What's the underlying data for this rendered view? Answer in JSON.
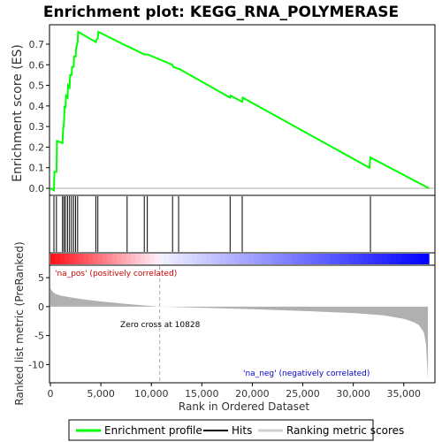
{
  "chart_data": [
    {
      "type": "line",
      "title": "Enrichment plot: KEGG_RNA_POLYMERASE",
      "ylabel": "Enrichment score (ES)",
      "xlim": [
        0,
        38000
      ],
      "ylim": [
        -0.03,
        0.79
      ],
      "yticks": [
        "0.0",
        "0.1",
        "0.2",
        "0.3",
        "0.4",
        "0.5",
        "0.6",
        "0.7"
      ],
      "line_color": "#00ff00",
      "series": [
        {
          "x": [
            0,
            350,
            400,
            600,
            650,
            1200,
            1250,
            1350,
            1400,
            1500,
            1550,
            1700,
            1750,
            1900,
            1950,
            2100,
            2150,
            2300,
            2350,
            2500,
            2550,
            2700,
            2750,
            4500,
            4550,
            4700,
            4750,
            7600,
            7650,
            9300,
            9350,
            9600,
            9650,
            12100,
            12150,
            12700,
            12750,
            17800,
            17850,
            19000,
            19050,
            31600,
            31700,
            37500
          ],
          "y": [
            0,
            -0.01,
            0.08,
            0.08,
            0.23,
            0.22,
            0.28,
            0.32,
            0.4,
            0.39,
            0.45,
            0.44,
            0.5,
            0.49,
            0.55,
            0.55,
            0.59,
            0.59,
            0.64,
            0.64,
            0.68,
            0.71,
            0.76,
            0.71,
            0.72,
            0.73,
            0.76,
            0.69,
            0.69,
            0.65,
            0.65,
            0.65,
            0.65,
            0.6,
            0.59,
            0.58,
            0.58,
            0.44,
            0.45,
            0.42,
            0.44,
            0.1,
            0.15,
            0.0
          ]
        }
      ]
    },
    {
      "type": "scatter",
      "name": "hits",
      "x": [
        350,
        600,
        1200,
        1350,
        1500,
        1700,
        1900,
        2100,
        2300,
        2500,
        2700,
        4500,
        4700,
        7600,
        9300,
        9600,
        12100,
        12700,
        17800,
        19000,
        31700
      ]
    },
    {
      "type": "area",
      "xlabel": "Rank in Ordered Dataset",
      "ylabel": "Ranked list metric (PreRanked)",
      "xlim": [
        0,
        38000
      ],
      "ylim": [
        -13,
        7
      ],
      "yticks": [
        "5",
        "0",
        "-5",
        "-10"
      ],
      "xticks": [
        "0",
        "5,000",
        "10,000",
        "15,000",
        "20,000",
        "25,000",
        "30,000",
        "35,000"
      ],
      "fill_color": "#b0b0b0",
      "x": [
        0,
        200,
        500,
        1000,
        2000,
        3000,
        5000,
        7000,
        9000,
        10828,
        13000,
        16000,
        20000,
        25000,
        30000,
        33000,
        35000,
        36000,
        36500,
        37000,
        37200,
        37400
      ],
      "y": [
        3.2,
        2.6,
        2.2,
        1.9,
        1.6,
        1.3,
        0.9,
        0.55,
        0.25,
        0.0,
        -0.1,
        -0.25,
        -0.45,
        -0.75,
        -1.1,
        -1.5,
        -2.1,
        -2.7,
        -3.2,
        -4.5,
        -6.5,
        -12.5
      ],
      "annotations": {
        "pos": "'na_pos' (positively correlated)",
        "zero": "Zero cross at 10828",
        "neg": "'na_neg' (negatively correlated)"
      },
      "zero_cross": 10828
    }
  ],
  "legend": {
    "items": [
      {
        "label": "Enrichment profile",
        "color": "#00ff00"
      },
      {
        "label": "Hits",
        "color": "#000000"
      },
      {
        "label": "Ranking metric scores",
        "color": "#d0d0d0"
      }
    ]
  }
}
